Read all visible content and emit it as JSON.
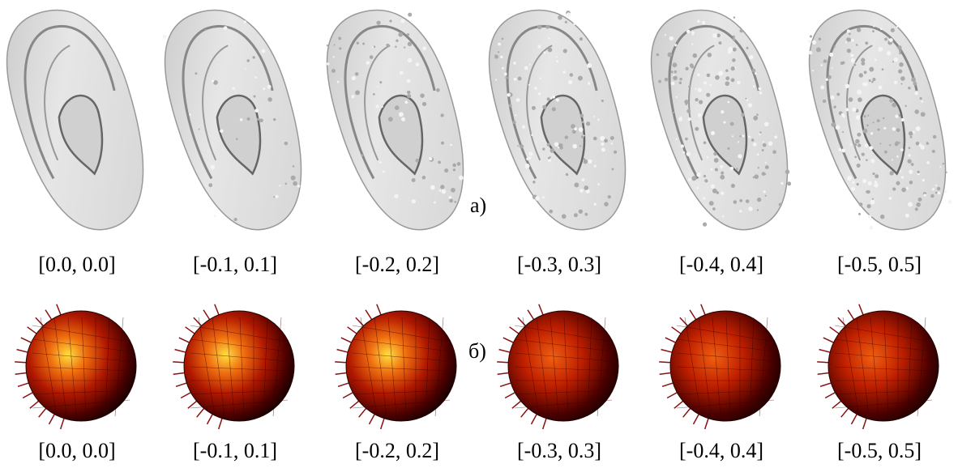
{
  "panels": [
    {
      "label": "a)",
      "captions": [
        "[0.0, 0.0]",
        "[-0.1, 0.1]",
        "[-0.2, 0.2]",
        "[-0.3, 0.3]",
        "[-0.4, 0.4]",
        "[-0.5, 0.5]"
      ]
    },
    {
      "label": "б)",
      "captions": [
        "[0.0, 0.0]",
        "[-0.1, 0.1]",
        "[-0.2, 0.2]",
        "[-0.3, 0.3]",
        "[-0.4, 0.4]",
        "[-0.5, 0.5]"
      ]
    }
  ]
}
